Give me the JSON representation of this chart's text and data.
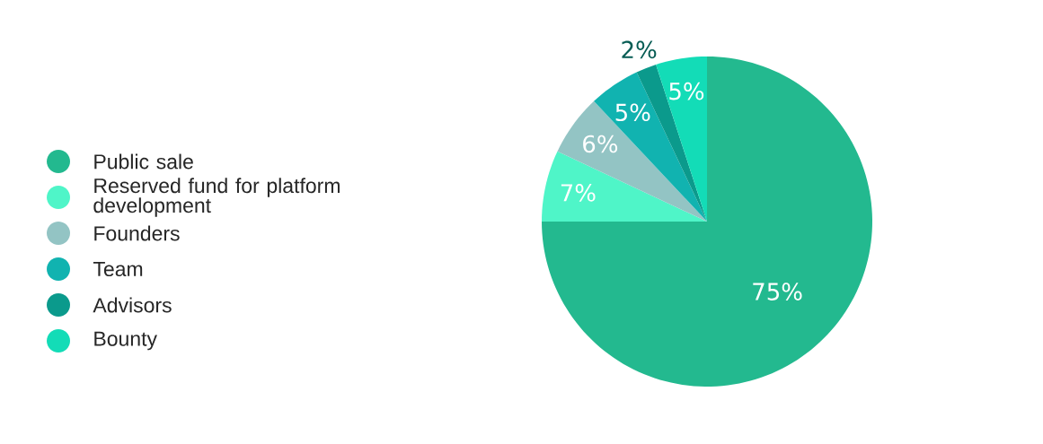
{
  "chart_data": {
    "type": "pie",
    "categories": [
      "Public sale",
      "Reserved fund for platform development",
      "Founders",
      "Team",
      "Advisors",
      "Bounty"
    ],
    "values": [
      75,
      7,
      6,
      5,
      2,
      5
    ],
    "value_labels": [
      "75%",
      "7%",
      "6%",
      "5%",
      "2%",
      "5%"
    ],
    "colors": [
      "#23b98f",
      "#4ff5c8",
      "#93c4c4",
      "#11b3b0",
      "#0b9a8c",
      "#13dcb7"
    ],
    "legend": "left"
  }
}
